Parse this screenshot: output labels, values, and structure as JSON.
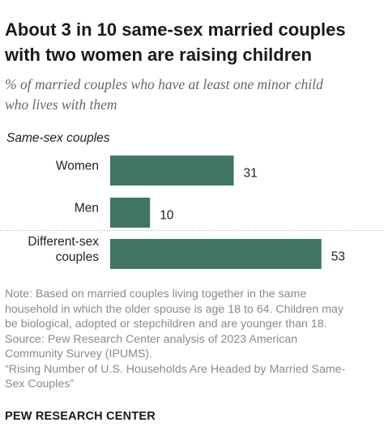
{
  "title_lines": [
    "About 3 in 10 same-sex married couples",
    "with two women are raising children"
  ],
  "subtitle_lines": [
    "% of married couples who have at least one minor child",
    "who lives with them"
  ],
  "chart_data": {
    "type": "bar",
    "orientation": "horizontal",
    "group_label": "Same-sex couples",
    "categories": [
      "Women",
      "Men",
      "Different-sex couples"
    ],
    "category_label_lines": [
      [
        "Women"
      ],
      [
        "Men"
      ],
      [
        "Different-sex",
        "couples"
      ]
    ],
    "values": [
      31,
      10,
      53
    ],
    "value_labels": [
      "31",
      "10",
      "53"
    ],
    "bar_color": "#3f7563",
    "separator_between": [
      "Men",
      "Different-sex couples"
    ],
    "grid": false,
    "legend": "none"
  },
  "notes": {
    "lines": [
      "Note: Based on married couples living together in the same",
      "household in which the older spouse is age 18 to 64. Children may",
      "be biological, adopted or stepchildren and are younger than 18.",
      "Source: Pew Research Center analysis of 2023 American",
      "Community Survey (IPUMS).",
      "“Rising Number of U.S. Households Are Headed by Married Same-",
      "Sex Couples”"
    ]
  },
  "footer": "PEW RESEARCH CENTER",
  "colors": {
    "bar": "#3f7563",
    "title": "#1a1a1a",
    "subtitle": "#666666",
    "notes": "#8a8a8a"
  }
}
